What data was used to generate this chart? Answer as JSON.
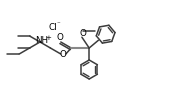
{
  "bg": "#ffffff",
  "bc": "#3c3c3c",
  "lw": 1.1,
  "fs": 6.2,
  "figsize": [
    1.69,
    0.93
  ],
  "dpi": 100,
  "xlim": [
    0,
    169
  ],
  "ylim": [
    0,
    93
  ]
}
